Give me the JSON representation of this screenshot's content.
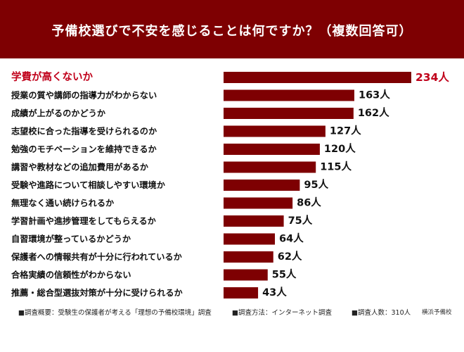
{
  "header": {
    "title": "予備校選びで不安を感じることは何ですか？（複数回答可）"
  },
  "chart_data": {
    "type": "bar",
    "orientation": "horizontal",
    "unit": "人",
    "categories": [
      "学費が高くないか",
      "授業の質や講師の指導力がわからない",
      "成績が上がるのかどうか",
      "志望校に合った指導を受けられるのか",
      "勉強のモチベーションを維持できるか",
      "講習や教材などの追加費用があるか",
      "受験や進路について相談しやすい環境か",
      "無理なく通い続けられるか",
      "学習計画や進捗管理をしてもらえるか",
      "自習環境が整っているかどうか",
      "保護者への情報共有が十分に行われているか",
      "合格実績の信頼性がわからない",
      "推薦・総合型選抜対策が十分に受けられるか"
    ],
    "values": [
      234,
      163,
      162,
      127,
      120,
      115,
      95,
      86,
      75,
      64,
      62,
      55,
      43
    ],
    "value_labels": [
      "234人",
      "163人",
      "162人",
      "127人",
      "120人",
      "115人",
      "95人",
      "86人",
      "75人",
      "64人",
      "62人",
      "55人",
      "43人"
    ],
    "highlight_index": 0,
    "xlim": [
      0,
      234
    ],
    "grid": false,
    "legend": "none"
  },
  "colors": {
    "header_bg": "#7e0002",
    "header_text": "#ffffff",
    "bar": "#7e0002",
    "highlight_text": "#c0001a",
    "label_text": "#111111",
    "footnote_text": "#222222"
  },
  "footnote": {
    "survey_summary": "■調査概要：受験生の保護者が考える「理想の予備校環境」調査",
    "survey_method": "■調査方法：インターネット調査",
    "respondents": "■調査人数：310人",
    "source": "横浜予備校"
  }
}
